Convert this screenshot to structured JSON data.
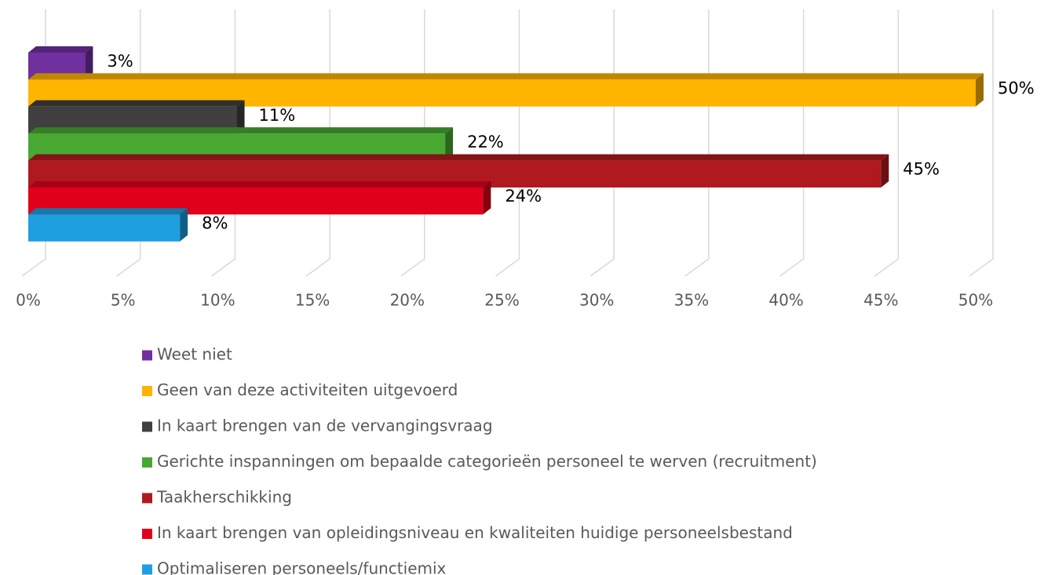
{
  "chart_data": {
    "type": "bar3d",
    "orientation": "horizontal",
    "categories": [
      null
    ],
    "series": [
      {
        "name": "Weet niet",
        "color": "#7030a0",
        "values": [
          3
        ],
        "value_labels": [
          "3%"
        ]
      },
      {
        "name": "Geen van deze activiteiten uitgevoerd",
        "color": "#ffb400",
        "values": [
          50
        ],
        "value_labels": [
          "50%"
        ]
      },
      {
        "name": "In kaart brengen van de vervangingsvraag",
        "color": "#404040",
        "values": [
          11
        ],
        "value_labels": [
          "11%"
        ]
      },
      {
        "name": "Gerichte inspanningen om bepaalde categorieën personeel te werven (recruitment)",
        "color": "#48a832",
        "values": [
          22
        ],
        "value_labels": [
          "22%"
        ]
      },
      {
        "name": "Taakherschikking",
        "color": "#b0191e",
        "values": [
          45
        ],
        "value_labels": [
          "45%"
        ]
      },
      {
        "name": "In kaart brengen van opleidingsniveau en kwaliteiten huidige personeelsbestand",
        "color": "#e0001b",
        "values": [
          24
        ],
        "value_labels": [
          "24%"
        ]
      },
      {
        "name": "Optimaliseren personeels/functiemix",
        "color": "#1e9fe0",
        "values": [
          8
        ],
        "value_labels": [
          "8%"
        ]
      }
    ],
    "xlim": [
      0,
      50
    ],
    "xticks": [
      {
        "value": 0,
        "label": "0%"
      },
      {
        "value": 5,
        "label": "5%"
      },
      {
        "value": 10,
        "label": "10%"
      },
      {
        "value": 15,
        "label": "15%"
      },
      {
        "value": 20,
        "label": "20%"
      },
      {
        "value": 25,
        "label": "25%"
      },
      {
        "value": 30,
        "label": "30%"
      },
      {
        "value": 35,
        "label": "35%"
      },
      {
        "value": 40,
        "label": "40%"
      },
      {
        "value": 45,
        "label": "45%"
      },
      {
        "value": 50,
        "label": "50%"
      }
    ],
    "grid": true,
    "legend": "bottom"
  }
}
